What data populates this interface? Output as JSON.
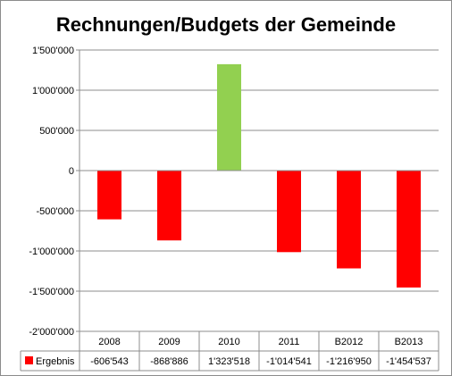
{
  "chart_data": {
    "type": "bar",
    "title": "Rechnungen/Budgets der Gemeinde",
    "xlabel": "",
    "ylabel": "",
    "categories": [
      "2008",
      "2009",
      "2010",
      "2011",
      "B2012",
      "B2013"
    ],
    "series": [
      {
        "name": "Ergebnis",
        "values": [
          -606543,
          -868886,
          1323518,
          -1014541,
          -1216950,
          -1454537
        ],
        "value_labels": [
          "-606'543",
          "-868'886",
          "1'323'518",
          "-1'014'541",
          "-1'216'950",
          "-1'454'537"
        ]
      }
    ],
    "bar_colors": [
      "#ff0000",
      "#ff0000",
      "#92d050",
      "#ff0000",
      "#ff0000",
      "#ff0000"
    ],
    "legend_color": "#ff0000",
    "ylim": [
      -2000000,
      1500000
    ],
    "yticks": [
      1500000,
      1000000,
      500000,
      0,
      -500000,
      -1000000,
      -1500000,
      -2000000
    ],
    "ytick_labels": [
      "1'500'000",
      "1'000'000",
      "500'000",
      "0",
      "-500'000",
      "-1'000'000",
      "-1'500'000",
      "-2'000'000"
    ],
    "grid": true,
    "legend": "data-table"
  }
}
